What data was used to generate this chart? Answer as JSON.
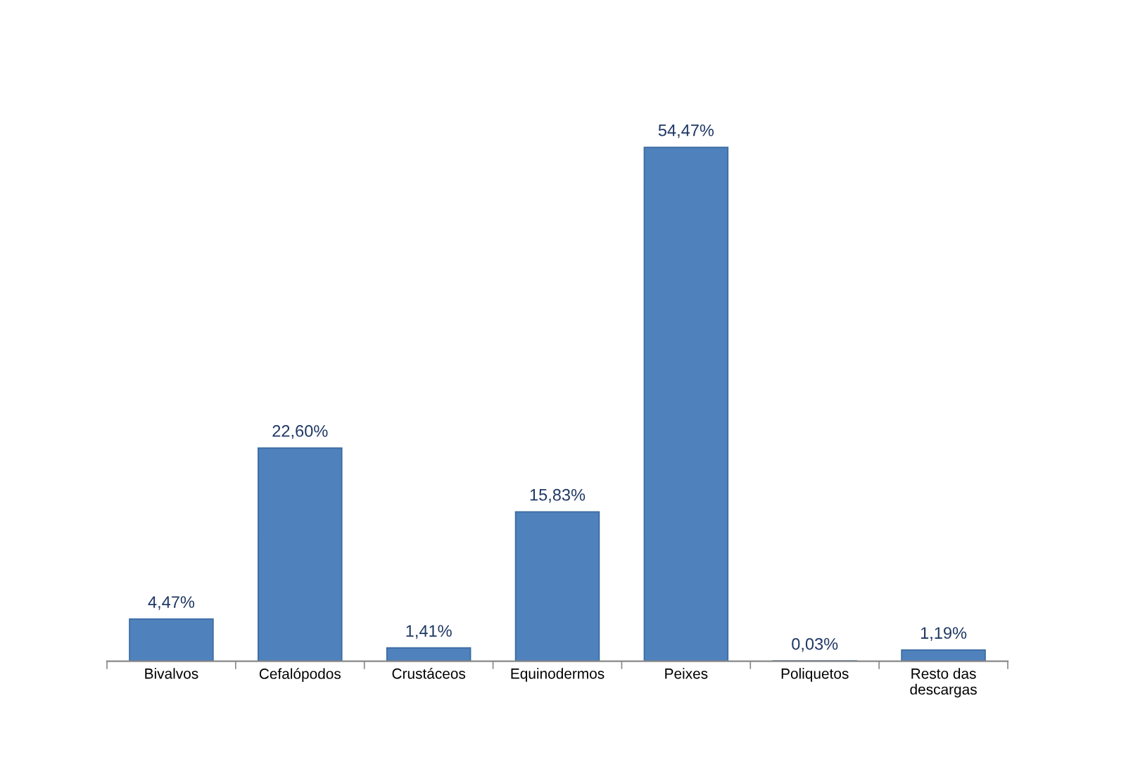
{
  "chart_data": {
    "type": "bar",
    "categories": [
      "Bivalvos",
      "Cefalópodos",
      "Crustáceos",
      "Equinodermos",
      "Peixes",
      "Poliquetos",
      "Resto das\ndescargas"
    ],
    "values": [
      4.47,
      22.6,
      1.41,
      15.83,
      54.47,
      0.03,
      1.19
    ],
    "value_labels": [
      "4,47%",
      "22,60%",
      "1,41%",
      "15,83%",
      "54,47%",
      "0,03%",
      "1,19%"
    ],
    "color": "#4f81bd",
    "tick_labels": "x"
  }
}
